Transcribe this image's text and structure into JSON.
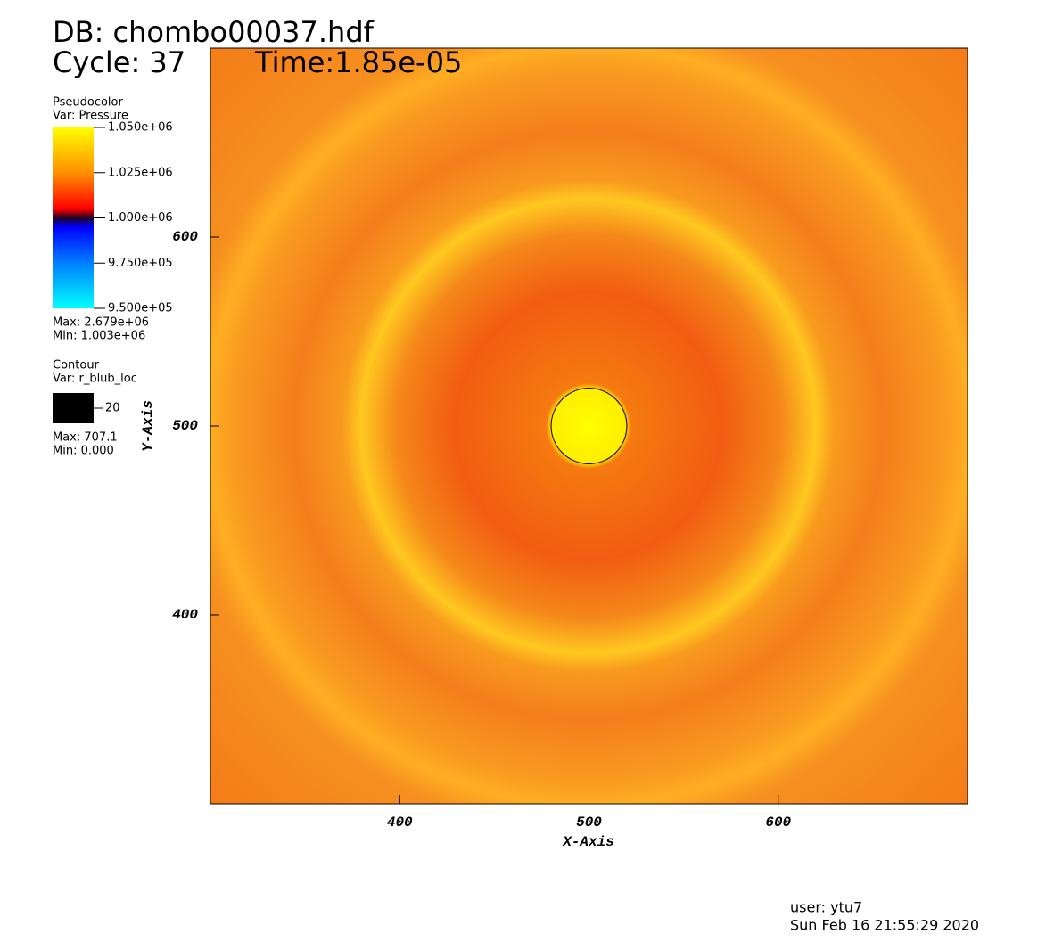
{
  "chart_data": {
    "type": "pseudocolor",
    "title": "DB: chombo00037.hdf",
    "cycle": "Cycle: 37",
    "time": "Time:1.85e-05",
    "xlabel": "X-Axis",
    "ylabel": "Y-Axis",
    "xlim": [
      300,
      700
    ],
    "ylim": [
      300,
      700
    ],
    "xticks": [
      400,
      500,
      600
    ],
    "yticks": [
      400,
      500,
      600
    ],
    "legend": {
      "plot": "Pseudocolor",
      "var": "Var: Pressure",
      "range": [
        950000,
        1050000
      ],
      "ticks": [
        {
          "value": 1050000,
          "label": "1.050e+06"
        },
        {
          "value": 1025000,
          "label": "1.025e+06"
        },
        {
          "value": 1000000,
          "label": "1.000e+06"
        },
        {
          "value": 975000,
          "label": "9.750e+05"
        },
        {
          "value": 950000,
          "label": "9.500e+05"
        }
      ],
      "max": "Max: 2.679e+06",
      "min": "Min:  1.003e+06"
    },
    "contour": {
      "plot": "Contour",
      "var": "Var: r_blub_loc",
      "levels": [
        20
      ],
      "color": "#000000",
      "max": "Max: 707.1",
      "min": "Min: 0.000"
    },
    "user": "user: ytu7",
    "date": "Sun Feb 16 21:55:29 2020"
  }
}
